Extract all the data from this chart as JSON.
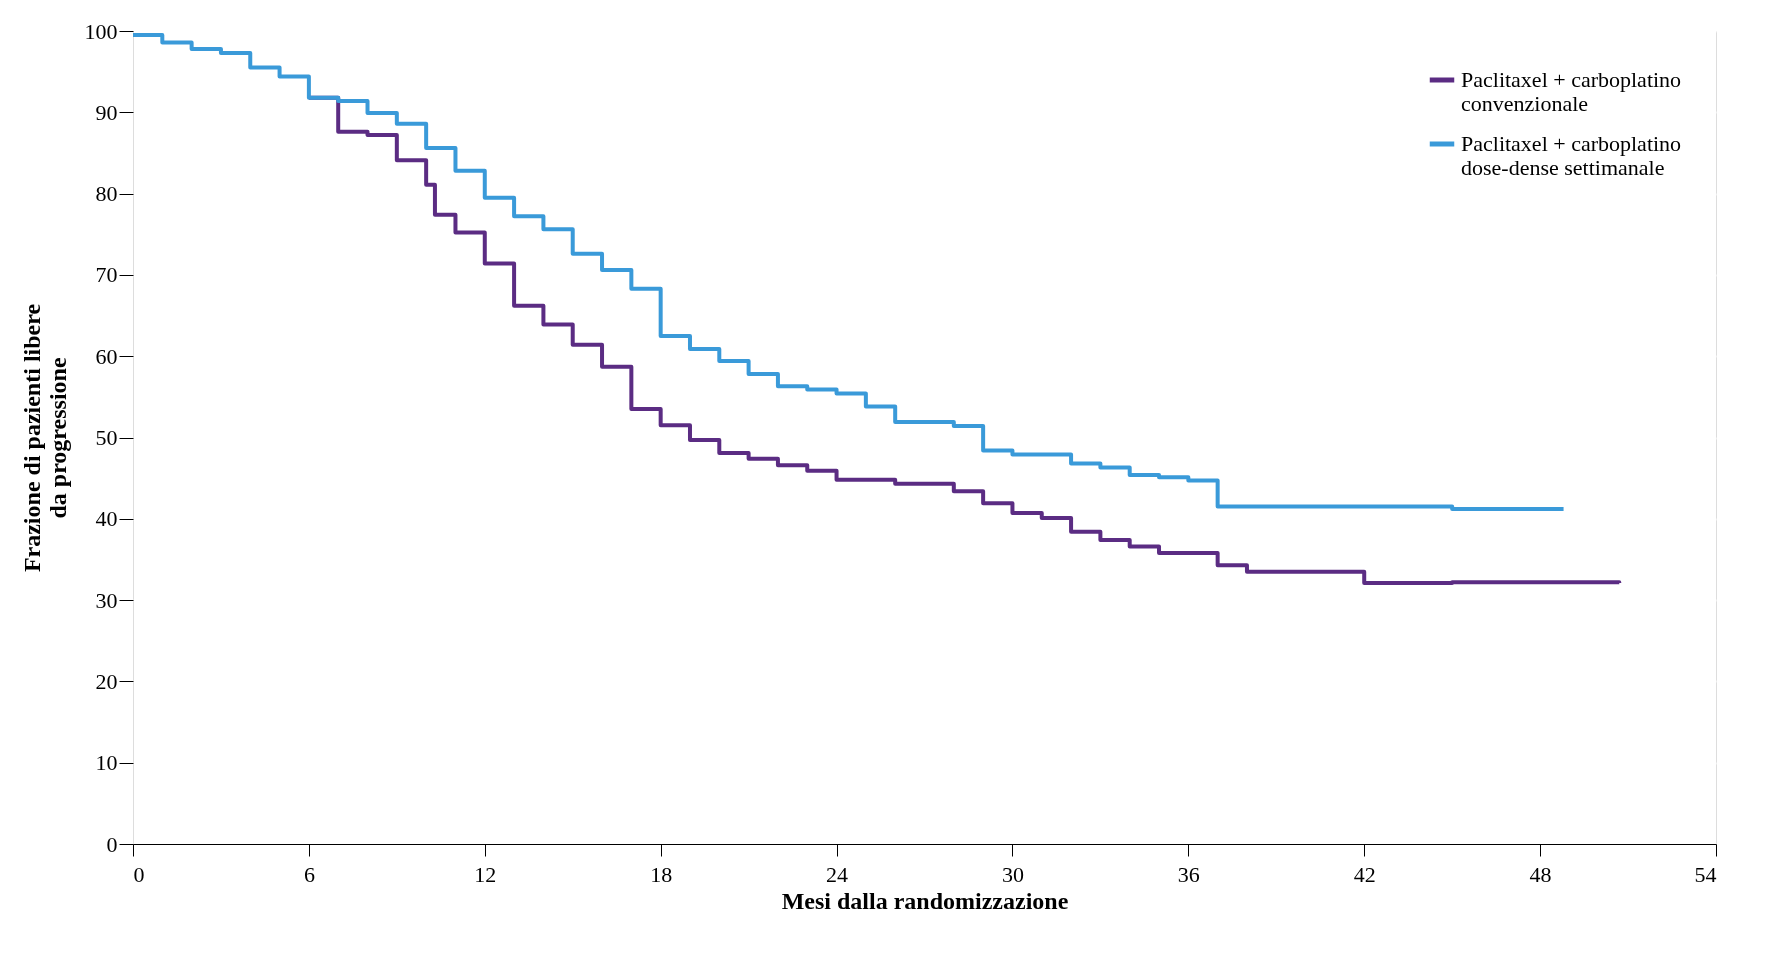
{
  "chart_data": {
    "type": "step",
    "xlabel": "Mesi dalla randomizzazione",
    "ylabel": "Frazione di pazienti libere\nda progressione",
    "xlim": [
      0,
      54
    ],
    "xticks": [
      0,
      6,
      12,
      18,
      24,
      30,
      36,
      42,
      48,
      54
    ],
    "ylim": [
      0,
      100
    ],
    "yticks": [
      0,
      10,
      20,
      30,
      40,
      50,
      60,
      70,
      80,
      90,
      100
    ],
    "grid": "y",
    "legend": "top right",
    "line_style": "solid",
    "marker": "none",
    "series": [
      {
        "name": "Paclitaxel + carboplatino\nconvenzionale",
        "color": "#5b2c83",
        "x": [
          6,
          7,
          8,
          9,
          10,
          10.3,
          11,
          12,
          13,
          14,
          15,
          16,
          17,
          18,
          19,
          20,
          21,
          22,
          23,
          24,
          26,
          28,
          29,
          30,
          31,
          32,
          33,
          34,
          35,
          37,
          38,
          42,
          45,
          50.7
        ],
        "values": [
          91.8,
          87.6,
          87.2,
          84.1,
          81.1,
          77.4,
          75.2,
          71.4,
          66.2,
          63.9,
          61.4,
          58.7,
          53.5,
          51.5,
          49.7,
          48.1,
          47.4,
          46.6,
          45.9,
          44.8,
          44.3,
          43.4,
          41.9,
          40.7,
          40.1,
          38.4,
          37.4,
          36.6,
          35.8,
          34.3,
          33.5,
          32.1,
          32.2,
          32.1
        ]
      },
      {
        "name": "Paclitaxel + carboplatino\ndose-dense settimanale",
        "color": "#3a9ad9",
        "x": [
          0,
          1,
          2,
          3,
          4,
          5,
          6,
          7,
          8,
          9,
          10,
          11,
          12,
          13,
          14,
          15,
          16,
          17,
          18,
          19,
          20,
          21,
          22,
          23,
          24,
          25,
          26,
          28,
          29,
          30,
          32,
          33,
          34,
          35,
          36,
          37,
          45,
          48.8
        ],
        "values": [
          99.5,
          98.6,
          97.8,
          97.3,
          95.5,
          94.4,
          91.8,
          91.4,
          89.9,
          88.6,
          85.6,
          82.8,
          79.5,
          77.2,
          75.6,
          72.6,
          70.6,
          68.3,
          62.5,
          60.9,
          59.4,
          57.8,
          56.3,
          55.9,
          55.4,
          53.8,
          51.9,
          51.4,
          48.4,
          47.9,
          46.8,
          46.3,
          45.4,
          45.1,
          44.7,
          41.5,
          41.2,
          41.2
        ]
      }
    ]
  }
}
